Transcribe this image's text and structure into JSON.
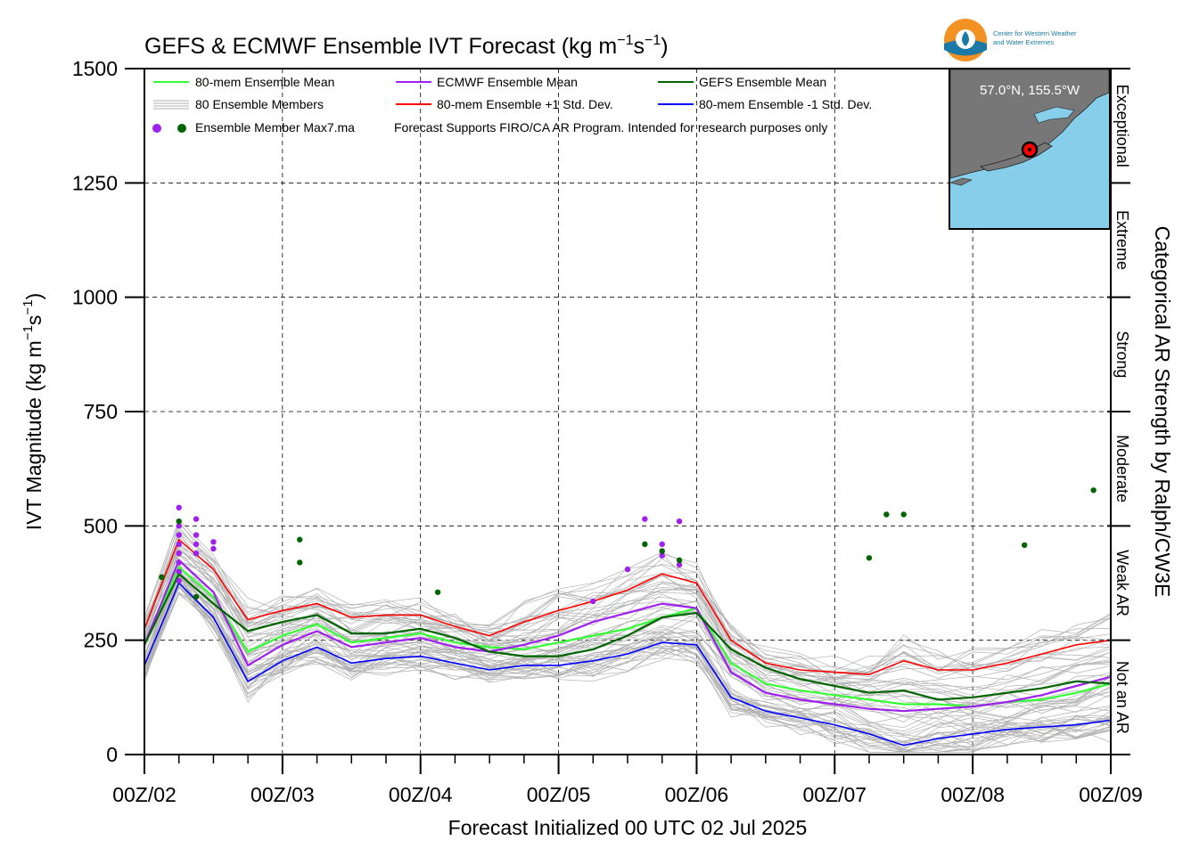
{
  "title": "GEFS & ECMWF Ensemble IVT Forecast",
  "title_units": "(kg m",
  "xlabel": "Forecast Initialized 00 UTC 02 Jul 2025",
  "ylabel": "IVT Magnitude",
  "ylabel_units": "(kg m",
  "right_axis_label": "Categorical AR Strength by Ralph/CW3E",
  "logo_text_line1": "Center for Western Weather",
  "logo_text_line2": "and Water Extremes",
  "inset_location": "57.0°N, 155.5°W",
  "disclaimer": "Forecast Supports FIRO/CA AR Program. Intended for research purposes only",
  "legend": {
    "ens_mean": "80-mem Ensemble Mean",
    "members": "80 Ensemble Members",
    "maxdots": "Ensemble Member Max7.ma",
    "ecmwf_mean": "ECMWF Ensemble Mean",
    "plus_std": "80-mem Ensemble +1 Std. Dev.",
    "gefs_mean": "GEFS Ensemble Mean",
    "minus_std": "80-mem Ensemble -1 Std. Dev."
  },
  "categories": [
    "Not an AR",
    "Weak AR",
    "Moderate",
    "Strong",
    "Extreme",
    "Exceptional"
  ],
  "colors": {
    "ens_mean": "#33ff33",
    "ecmwf_mean": "#a020f0",
    "gefs_mean": "#006400",
    "plus_std": "#ff0000",
    "minus_std": "#0000ff",
    "members": "#b0b0b0",
    "ocean": "#87ceeb",
    "land": "#777777"
  },
  "chart_data": {
    "type": "line",
    "x_unit": "forecast hours from 00Z 02 Jul 2025",
    "xlim": [
      0,
      168
    ],
    "ylim": [
      0,
      1500
    ],
    "yticks": [
      0,
      250,
      500,
      750,
      1000,
      1250,
      1500
    ],
    "xticks": [
      0,
      24,
      48,
      72,
      96,
      120,
      144,
      168
    ],
    "xtick_labels": [
      "00Z/02",
      "00Z/03",
      "00Z/04",
      "00Z/05",
      "00Z/06",
      "00Z/07",
      "00Z/08",
      "00Z/09"
    ],
    "grid": true,
    "category_thresholds": [
      0,
      250,
      500,
      750,
      1000,
      1250,
      1500
    ],
    "x": [
      0,
      6,
      12,
      18,
      24,
      30,
      36,
      42,
      48,
      54,
      60,
      66,
      72,
      78,
      84,
      90,
      96,
      102,
      108,
      114,
      120,
      126,
      132,
      138,
      144,
      150,
      156,
      162,
      168
    ],
    "series": [
      {
        "name": "80-mem Ensemble Mean",
        "key": "ens_mean",
        "values": [
          240,
          410,
          345,
          225,
          260,
          285,
          245,
          255,
          265,
          245,
          235,
          230,
          245,
          260,
          275,
          300,
          320,
          200,
          155,
          140,
          130,
          120,
          110,
          110,
          105,
          115,
          120,
          135,
          155
        ]
      },
      {
        "name": "ECMWF Ensemble Mean",
        "key": "ecmwf_mean",
        "values": [
          240,
          425,
          355,
          195,
          240,
          270,
          235,
          245,
          255,
          235,
          225,
          240,
          260,
          290,
          310,
          330,
          320,
          180,
          135,
          120,
          110,
          100,
          95,
          100,
          105,
          115,
          130,
          150,
          170
        ]
      },
      {
        "name": "GEFS Ensemble Mean",
        "key": "gefs_mean",
        "values": [
          240,
          395,
          330,
          270,
          290,
          305,
          265,
          265,
          275,
          255,
          225,
          215,
          215,
          230,
          260,
          300,
          310,
          230,
          190,
          165,
          150,
          135,
          140,
          120,
          125,
          135,
          145,
          160,
          155
        ]
      },
      {
        "name": "80-mem Ensemble +1 Std. Dev.",
        "key": "plus_std",
        "values": [
          275,
          470,
          405,
          295,
          315,
          330,
          300,
          305,
          305,
          280,
          260,
          290,
          315,
          335,
          360,
          395,
          375,
          250,
          200,
          185,
          180,
          175,
          205,
          185,
          185,
          200,
          220,
          240,
          250
        ]
      },
      {
        "name": "80-mem Ensemble -1 Std. Dev.",
        "key": "minus_std",
        "values": [
          195,
          375,
          300,
          160,
          205,
          235,
          200,
          210,
          215,
          200,
          185,
          195,
          195,
          205,
          220,
          245,
          240,
          125,
          95,
          80,
          65,
          45,
          20,
          35,
          45,
          55,
          60,
          65,
          75
        ]
      }
    ],
    "max_points_ecmwf": [
      {
        "x": 6,
        "y": 540
      },
      {
        "x": 6,
        "y": 500
      },
      {
        "x": 6,
        "y": 480
      },
      {
        "x": 6,
        "y": 460
      },
      {
        "x": 6,
        "y": 440
      },
      {
        "x": 6,
        "y": 420
      },
      {
        "x": 6,
        "y": 400
      },
      {
        "x": 6,
        "y": 380
      },
      {
        "x": 9,
        "y": 515
      },
      {
        "x": 9,
        "y": 480
      },
      {
        "x": 9,
        "y": 460
      },
      {
        "x": 9,
        "y": 440
      },
      {
        "x": 12,
        "y": 465
      },
      {
        "x": 12,
        "y": 450
      },
      {
        "x": 78,
        "y": 335
      },
      {
        "x": 84,
        "y": 405
      },
      {
        "x": 87,
        "y": 515
      },
      {
        "x": 90,
        "y": 460
      },
      {
        "x": 90,
        "y": 435
      },
      {
        "x": 93,
        "y": 510
      },
      {
        "x": 93,
        "y": 415
      }
    ],
    "max_points_gefs": [
      {
        "x": 3,
        "y": 388
      },
      {
        "x": 6,
        "y": 510
      },
      {
        "x": 9,
        "y": 345
      },
      {
        "x": 27,
        "y": 470
      },
      {
        "x": 27,
        "y": 420
      },
      {
        "x": 51,
        "y": 355
      },
      {
        "x": 87,
        "y": 460
      },
      {
        "x": 90,
        "y": 445
      },
      {
        "x": 93,
        "y": 425
      },
      {
        "x": 126,
        "y": 430
      },
      {
        "x": 129,
        "y": 525
      },
      {
        "x": 132,
        "y": 525
      },
      {
        "x": 153,
        "y": 458
      },
      {
        "x": 165,
        "y": 578
      }
    ]
  }
}
